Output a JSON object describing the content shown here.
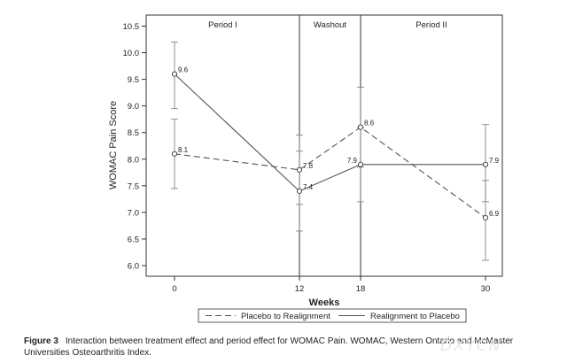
{
  "chart_data": {
    "type": "line",
    "ylabel": "WOMAC Pain Score",
    "xlabel": "Weeks",
    "x": [
      0,
      12,
      18,
      30
    ],
    "x_ticks": [
      "0",
      "12",
      "18",
      "30"
    ],
    "ylim": [
      5.9,
      10.6
    ],
    "y_ticks": [
      "6.0",
      "6.5",
      "7.0",
      "7.5",
      "8.0",
      "8.5",
      "9.0",
      "9.5",
      "10.0",
      "10.5"
    ],
    "periods": [
      "Period I",
      "Washout",
      "Period II"
    ],
    "grid": false,
    "legend_position": "bottom",
    "series": [
      {
        "name": "Placebo to Realignment",
        "line_style": "dashed",
        "values": [
          8.1,
          7.8,
          8.6,
          6.9
        ],
        "point_labels": [
          "8.1",
          "7.8",
          "8.6",
          "6.9"
        ],
        "error_low": [
          7.45,
          7.15,
          7.85,
          6.1
        ],
        "error_high": [
          8.75,
          8.45,
          9.35,
          7.6
        ]
      },
      {
        "name": "Realignment to Placebo",
        "line_style": "solid",
        "values": [
          9.6,
          7.4,
          7.9,
          7.9
        ],
        "point_labels": [
          "9.6",
          "7.4",
          "7.9",
          "7.9"
        ],
        "error_low": [
          8.95,
          6.65,
          7.2,
          7.2
        ],
        "error_high": [
          10.2,
          8.15,
          8.6,
          8.65
        ]
      }
    ]
  },
  "caption": {
    "label": "Figure 3",
    "text": "Interaction between treatment effect and period effect for WOMAC Pain. WOMAC, Western Ontario and McMaster Universities Osteoarthritis Index."
  },
  "watermark": "DXYCN",
  "colors": {
    "line": "#555555",
    "text": "#222222"
  }
}
